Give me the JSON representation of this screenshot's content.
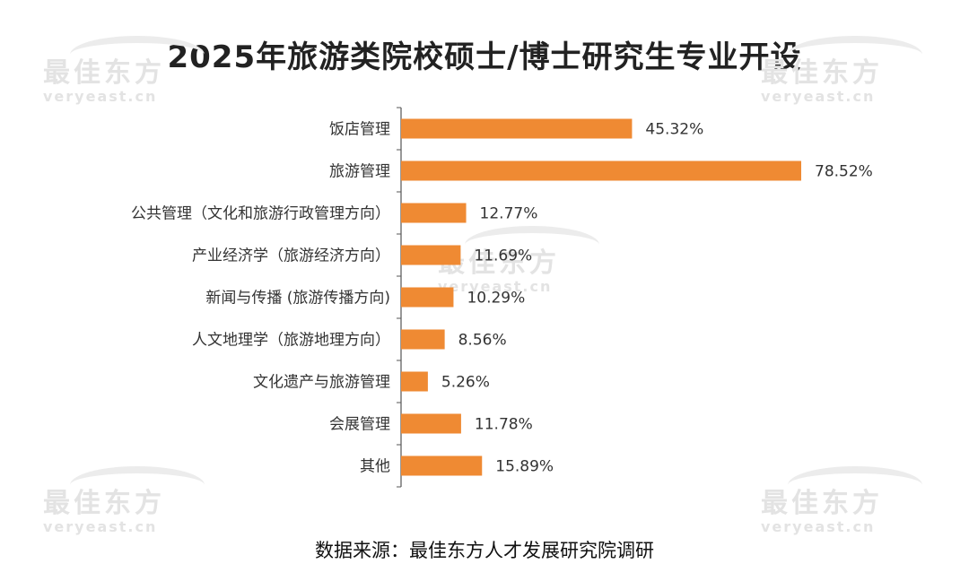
{
  "title": "2025年旅游类院校硕士/博士研究生专业开设",
  "source": "数据来源：最佳东方人才发展研究院调研",
  "watermark": {
    "cn": "最佳东方",
    "en": "veryeast.cn"
  },
  "colors": {
    "bar": "#ef8a33",
    "axis": "#555555",
    "watermark": "#e3e3e3"
  },
  "chart_data": {
    "type": "bar",
    "orientation": "horizontal",
    "categories": [
      "饭店管理",
      "旅游管理",
      "公共管理（文化和旅游行政管理方向）",
      "产业经济学（旅游经济方向）",
      "新闻与传播 (旅游传播方向)",
      "人文地理学（旅游地理方向）",
      "文化遗产与旅游管理",
      "会展管理",
      "其他"
    ],
    "values": [
      45.32,
      78.52,
      12.77,
      11.69,
      10.29,
      8.56,
      5.26,
      11.78,
      15.89
    ],
    "value_labels": [
      "45.32%",
      "78.52%",
      "12.77%",
      "11.69%",
      "10.29%",
      "8.56%",
      "5.26%",
      "11.78%",
      "15.89%"
    ],
    "unit": "%",
    "xlim": [
      0,
      80
    ],
    "grid": false,
    "legend": "none"
  }
}
